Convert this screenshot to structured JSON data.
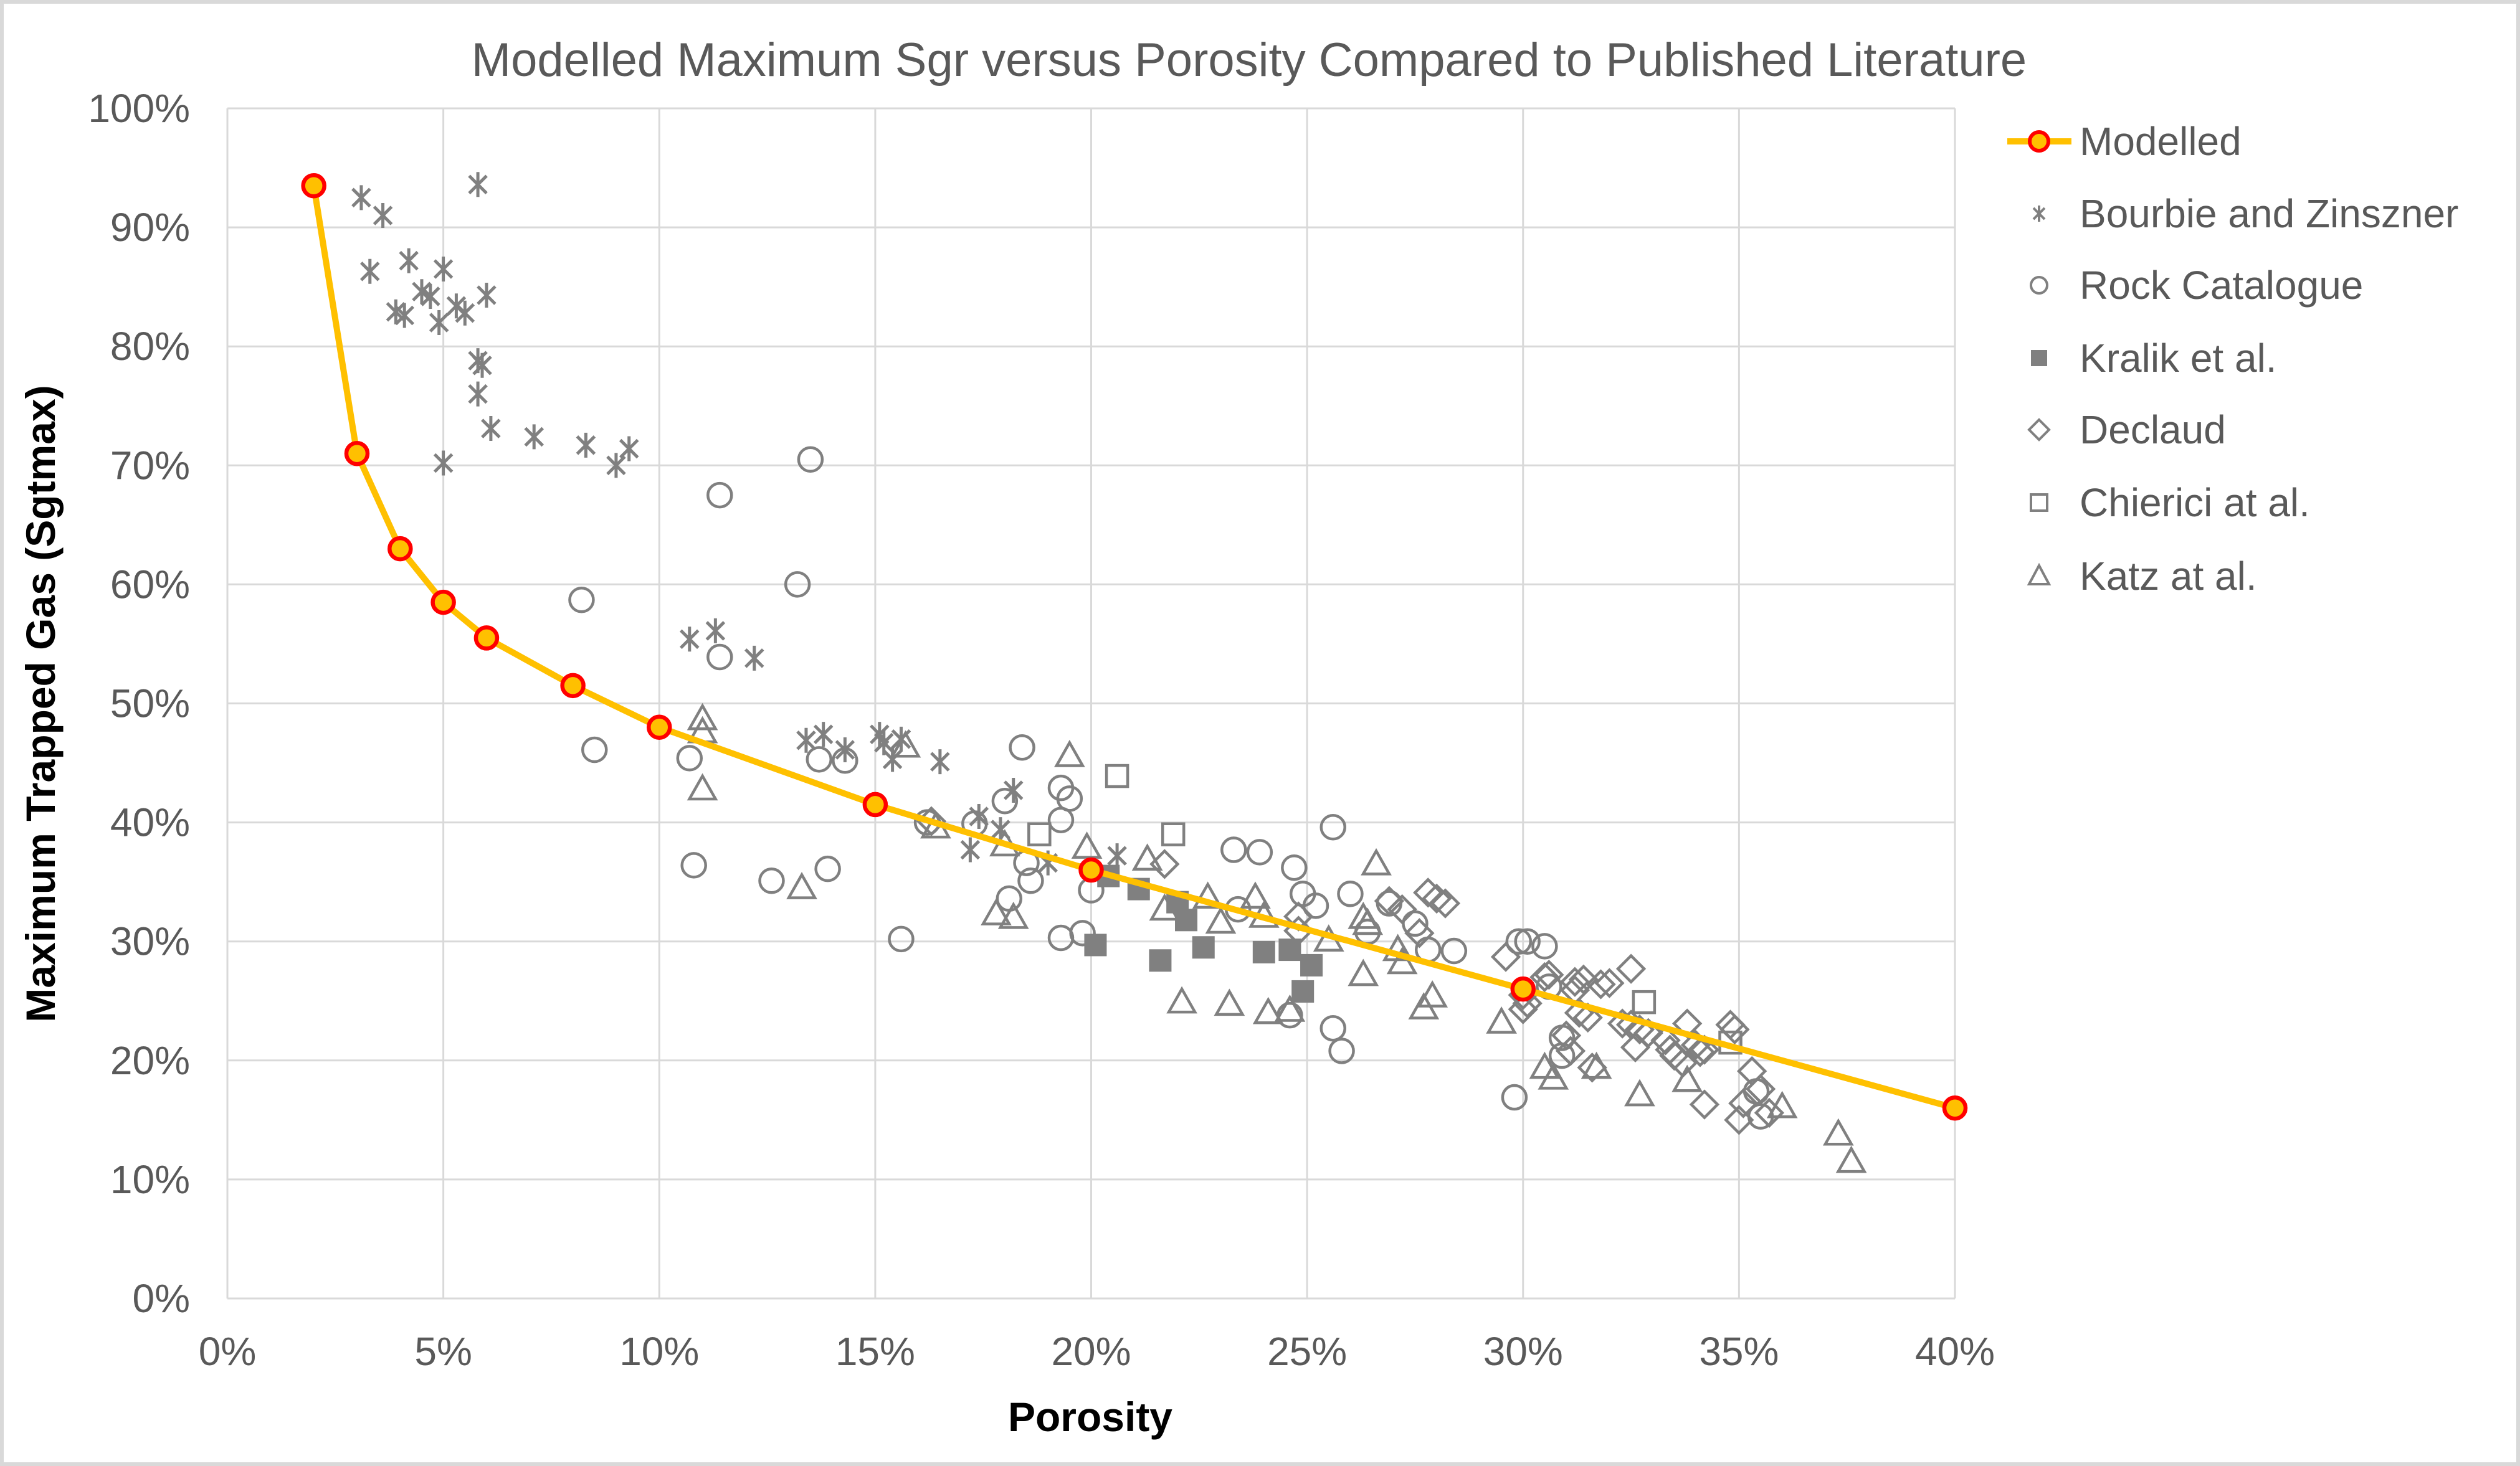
{
  "title": "Modelled Maximum Sgr versus Porosity Compared to Published Literature",
  "colors": {
    "modelled_line": "#FFC000",
    "modelled_marker_fill": "#FFC000",
    "modelled_marker_outline": "#FF0000",
    "scatter_gray": "#808080",
    "gridline": "#D9D9D9",
    "tick_text": "#595959",
    "title_text": "#595959",
    "axis_title_text": "#000000",
    "frame": "#D9D9D9",
    "background": "#FFFFFF"
  },
  "axes": {
    "x": {
      "label": "Porosity",
      "min": 0,
      "max": 40,
      "step": 5,
      "tick_values": [
        0,
        5,
        10,
        15,
        20,
        25,
        30,
        35,
        40
      ],
      "tick_labels": [
        "0%",
        "5%",
        "10%",
        "15%",
        "20%",
        "25%",
        "30%",
        "35%",
        "40%"
      ]
    },
    "y": {
      "label": "Maximum Trapped Gas (Sgtmax)",
      "min": 0,
      "max": 100,
      "step": 10,
      "tick_values": [
        0,
        10,
        20,
        30,
        40,
        50,
        60,
        70,
        80,
        90,
        100
      ],
      "tick_labels": [
        "0%",
        "10%",
        "20%",
        "30%",
        "40%",
        "50%",
        "60%",
        "70%",
        "80%",
        "90%",
        "100%"
      ]
    }
  },
  "legend": {
    "position": "right",
    "items": [
      {
        "label": "Modelled",
        "marker": "line-circle"
      },
      {
        "label": "Bourbie and Zinszner",
        "marker": "star"
      },
      {
        "label": "Rock Catalogue",
        "marker": "circle"
      },
      {
        "label": "Kralik et al.",
        "marker": "square-filled"
      },
      {
        "label": "Declaud",
        "marker": "diamond"
      },
      {
        "label": "Chierici at al.",
        "marker": "square"
      },
      {
        "label": "Katz at al.",
        "marker": "triangle"
      }
    ]
  },
  "chart_data": {
    "type": "scatter",
    "title": "Modelled Maximum Sgr versus Porosity Compared to Published Literature",
    "xlabel": "Porosity",
    "ylabel": "Maximum Trapped Gas (Sgtmax)",
    "xlim": [
      0,
      40
    ],
    "ylim": [
      0,
      100
    ],
    "units": "percent",
    "grid": true,
    "legend_position": "right",
    "series": [
      {
        "name": "Modelled",
        "type": "line",
        "marker": "line-circle",
        "points": [
          [
            2,
            93.5
          ],
          [
            3,
            71
          ],
          [
            4,
            63
          ],
          [
            5,
            58.5
          ],
          [
            6,
            55.5
          ],
          [
            8,
            51.5
          ],
          [
            10,
            48
          ],
          [
            15,
            41.5
          ],
          [
            20,
            36
          ],
          [
            30,
            26
          ],
          [
            40,
            16
          ]
        ]
      },
      {
        "name": "Bourbie and Zinszner",
        "type": "scatter",
        "marker": "star",
        "points": [
          [
            3.1,
            92.5
          ],
          [
            3.6,
            91
          ],
          [
            5.8,
            93.6
          ],
          [
            3.3,
            86.3
          ],
          [
            4.2,
            87.2
          ],
          [
            5,
            86.5
          ],
          [
            4.5,
            84.6
          ],
          [
            4.7,
            84.2
          ],
          [
            3.9,
            82.9
          ],
          [
            4.1,
            82.6
          ],
          [
            4.9,
            82
          ],
          [
            5.3,
            83.4
          ],
          [
            5.5,
            82.8
          ],
          [
            6,
            84.3
          ],
          [
            5.8,
            78.8
          ],
          [
            5.9,
            78.4
          ],
          [
            5.8,
            76
          ],
          [
            6.1,
            73.1
          ],
          [
            7.1,
            72.4
          ],
          [
            8.3,
            71.7
          ],
          [
            9.3,
            71.4
          ],
          [
            9,
            70
          ],
          [
            5,
            70.2
          ],
          [
            10.7,
            55.4
          ],
          [
            11.3,
            56.1
          ],
          [
            12.2,
            53.8
          ],
          [
            13.4,
            46.9
          ],
          [
            13.8,
            47.4
          ],
          [
            14.3,
            46.1
          ],
          [
            15.1,
            47.4
          ],
          [
            15.2,
            46.7
          ],
          [
            15.6,
            47
          ],
          [
            15.4,
            45.3
          ],
          [
            16.5,
            45.1
          ],
          [
            18.2,
            42.7
          ],
          [
            17.4,
            40.5
          ],
          [
            17.9,
            39.4
          ],
          [
            17.2,
            37.7
          ],
          [
            19,
            36.6
          ],
          [
            20.6,
            37.2
          ]
        ]
      },
      {
        "name": "Rock Catalogue",
        "type": "scatter",
        "marker": "circle",
        "points": [
          [
            8.2,
            58.7
          ],
          [
            8.5,
            46.1
          ],
          [
            10.7,
            45.4
          ],
          [
            10.8,
            36.4
          ],
          [
            11.4,
            67.5
          ],
          [
            13.5,
            70.5
          ],
          [
            13.2,
            60
          ],
          [
            11.4,
            53.9
          ],
          [
            12.6,
            35.1
          ],
          [
            13.9,
            36.1
          ],
          [
            13.7,
            45.3
          ],
          [
            14.3,
            45.2
          ],
          [
            16.2,
            40
          ],
          [
            17.3,
            39.9
          ],
          [
            18,
            41.8
          ],
          [
            18.4,
            46.3
          ],
          [
            19.3,
            42.9
          ],
          [
            19.5,
            42
          ],
          [
            19.3,
            40.2
          ],
          [
            18.5,
            36.6
          ],
          [
            18.6,
            35.1
          ],
          [
            20,
            34.3
          ],
          [
            18.1,
            33.6
          ],
          [
            15.6,
            30.2
          ],
          [
            19.3,
            30.3
          ],
          [
            19.8,
            30.7
          ],
          [
            23.3,
            37.7
          ],
          [
            23.9,
            37.5
          ],
          [
            24.7,
            36.2
          ],
          [
            25.6,
            39.6
          ],
          [
            24.9,
            34
          ],
          [
            25.2,
            33
          ],
          [
            26,
            34
          ],
          [
            23.4,
            32.7
          ],
          [
            26.4,
            30.8
          ],
          [
            26.9,
            33.2
          ],
          [
            27.5,
            31.5
          ],
          [
            27.8,
            29.3
          ],
          [
            28.4,
            29.2
          ],
          [
            29.9,
            30
          ],
          [
            30.1,
            30
          ],
          [
            30.5,
            29.6
          ],
          [
            30.6,
            26.2
          ],
          [
            24.6,
            23.8
          ],
          [
            25.6,
            22.7
          ],
          [
            25.8,
            20.8
          ],
          [
            30.9,
            21.9
          ],
          [
            30.9,
            20.4
          ],
          [
            29.8,
            16.9
          ],
          [
            35.4,
            17.4
          ],
          [
            35.5,
            15.3
          ]
        ]
      },
      {
        "name": "Kralik et al.",
        "type": "scatter",
        "marker": "square-filled",
        "points": [
          [
            20.4,
            35.5
          ],
          [
            21.1,
            34.4
          ],
          [
            22,
            33.3
          ],
          [
            22.2,
            31.8
          ],
          [
            20.1,
            29.7
          ],
          [
            21.6,
            28.4
          ],
          [
            22.6,
            29.5
          ],
          [
            24,
            29.1
          ],
          [
            24.6,
            29.3
          ],
          [
            25.1,
            28
          ],
          [
            24.9,
            25.8
          ]
        ]
      },
      {
        "name": "Declaud",
        "type": "scatter",
        "marker": "diamond",
        "points": [
          [
            16.3,
            40.1
          ],
          [
            21.7,
            36.5
          ],
          [
            24.8,
            32.1
          ],
          [
            24.8,
            30.9
          ],
          [
            26.9,
            33.4
          ],
          [
            27.2,
            32.7
          ],
          [
            27.8,
            34.1
          ],
          [
            28,
            33.6
          ],
          [
            28.2,
            33.2
          ],
          [
            27.6,
            30.7
          ],
          [
            29.6,
            28.7
          ],
          [
            30,
            25.5
          ],
          [
            30.1,
            24.8
          ],
          [
            30,
            24.3
          ],
          [
            30.5,
            27
          ],
          [
            30.6,
            27.2
          ],
          [
            31.2,
            26.6
          ],
          [
            31.4,
            26.8
          ],
          [
            31.2,
            25.9
          ],
          [
            31.8,
            26.4
          ],
          [
            32,
            26.5
          ],
          [
            32.5,
            27.7
          ],
          [
            31.3,
            24
          ],
          [
            31.5,
            23.6
          ],
          [
            31,
            22.1
          ],
          [
            31.1,
            20.8
          ],
          [
            31.6,
            19.4
          ],
          [
            32.3,
            23.1
          ],
          [
            32.5,
            23
          ],
          [
            32.7,
            22.6
          ],
          [
            32.9,
            22.3
          ],
          [
            32.6,
            21.1
          ],
          [
            33.3,
            21.7
          ],
          [
            33.4,
            20.9
          ],
          [
            33.5,
            20.4
          ],
          [
            33.7,
            19.8
          ],
          [
            33.8,
            23.1
          ],
          [
            34,
            21.3
          ],
          [
            34.1,
            20.7
          ],
          [
            34.2,
            20.9
          ],
          [
            34.8,
            23
          ],
          [
            34.9,
            22.6
          ],
          [
            35.3,
            19.1
          ],
          [
            35.5,
            17.6
          ],
          [
            35.7,
            15.6
          ],
          [
            35.1,
            16.4
          ],
          [
            35,
            15
          ],
          [
            34.2,
            16.3
          ]
        ]
      },
      {
        "name": "Chierici at al.",
        "type": "scatter",
        "marker": "square",
        "points": [
          [
            20.6,
            43.9
          ],
          [
            18.8,
            39
          ],
          [
            21.9,
            39
          ],
          [
            32.8,
            24.9
          ],
          [
            34.8,
            21.5
          ]
        ]
      },
      {
        "name": "Katz at al.",
        "type": "scatter",
        "marker": "triangle",
        "points": [
          [
            11,
            48.6
          ],
          [
            11,
            47.5
          ],
          [
            11,
            42.7
          ],
          [
            13.3,
            34.4
          ],
          [
            15.7,
            46.3
          ],
          [
            19.5,
            45.5
          ],
          [
            16.4,
            39.5
          ],
          [
            18,
            38
          ],
          [
            19.9,
            37.8
          ],
          [
            21.3,
            36.8
          ],
          [
            21.7,
            32.6
          ],
          [
            17.8,
            32.2
          ],
          [
            18.2,
            31.9
          ],
          [
            22.1,
            24.8
          ],
          [
            22.7,
            33.6
          ],
          [
            23,
            31.5
          ],
          [
            23.8,
            33.6
          ],
          [
            24,
            32
          ],
          [
            26.6,
            36.4
          ],
          [
            26.3,
            31.9
          ],
          [
            26.4,
            31.4
          ],
          [
            25.5,
            30
          ],
          [
            26.3,
            27.1
          ],
          [
            27.1,
            29.2
          ],
          [
            27.2,
            28.1
          ],
          [
            27.9,
            25.3
          ],
          [
            27.7,
            24.3
          ],
          [
            23.2,
            24.6
          ],
          [
            24.1,
            23.9
          ],
          [
            24.6,
            24.1
          ],
          [
            29.5,
            23.1
          ],
          [
            30.5,
            19.3
          ],
          [
            30.7,
            18.4
          ],
          [
            31.7,
            19.3
          ],
          [
            32.7,
            17
          ],
          [
            33.8,
            18.2
          ],
          [
            36,
            16
          ],
          [
            37.3,
            13.7
          ],
          [
            37.6,
            11.4
          ]
        ]
      }
    ]
  }
}
